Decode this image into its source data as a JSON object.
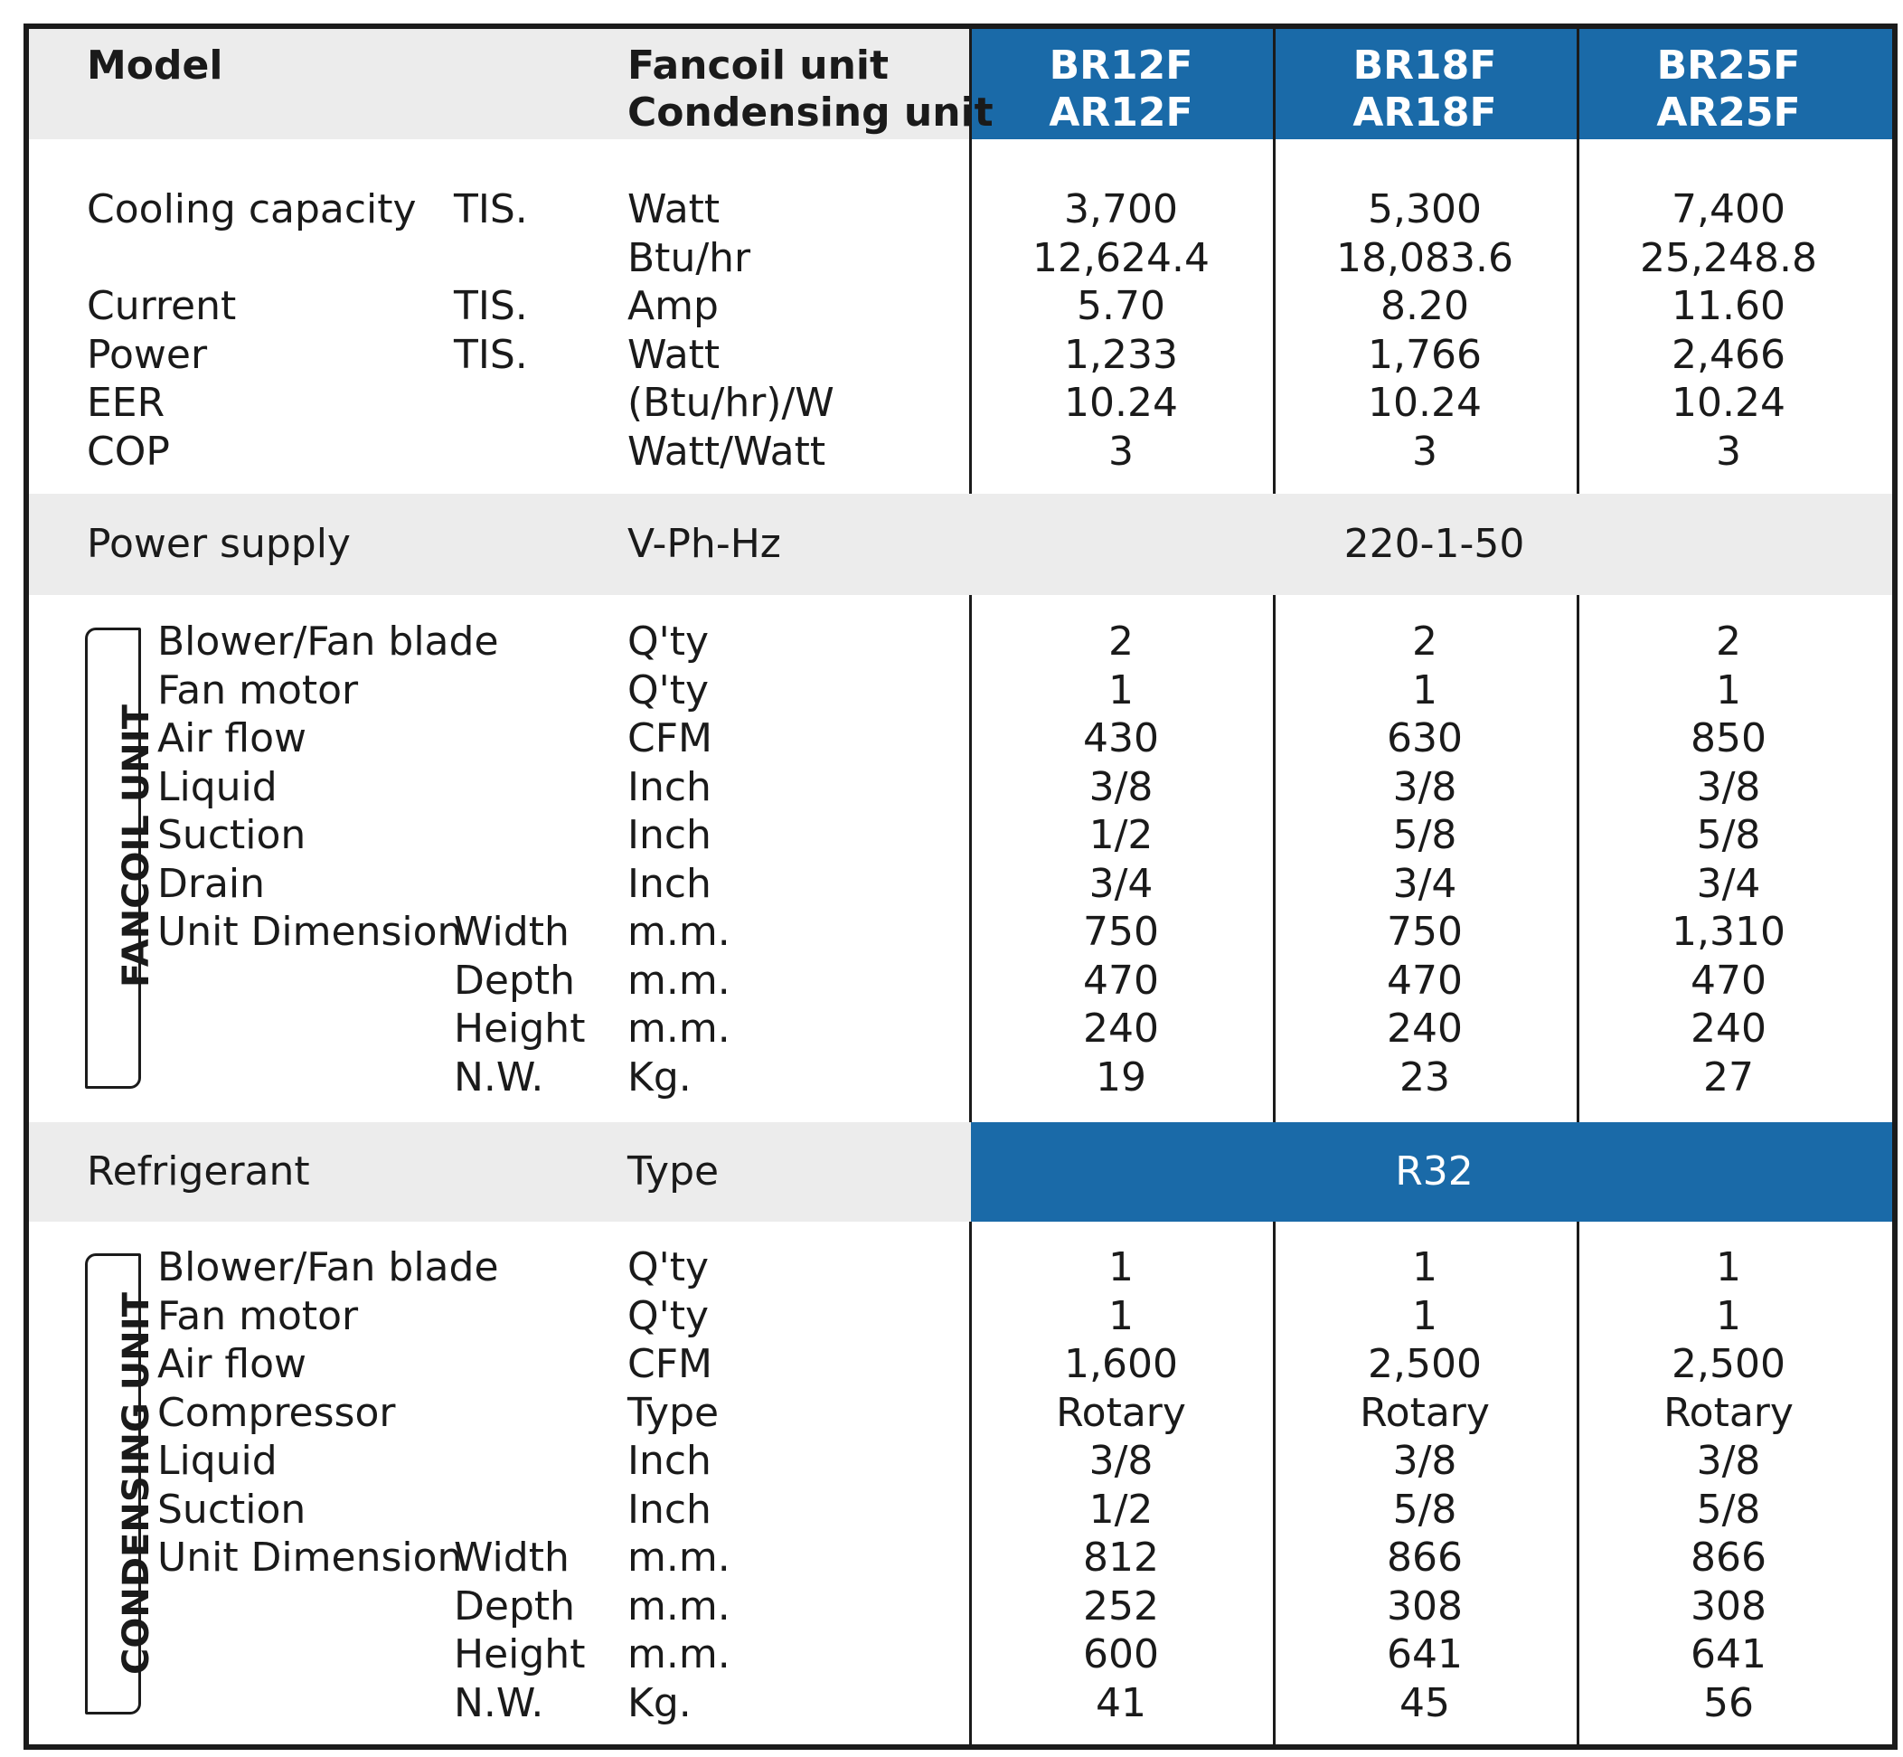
{
  "header": {
    "model_label": "Model",
    "unit_label_1": "Fancoil unit",
    "unit_label_2": "Condensing unit",
    "models": [
      {
        "fancoil": "BR12F",
        "condensing": "AR12F"
      },
      {
        "fancoil": "BR18F",
        "condensing": "AR18F"
      },
      {
        "fancoil": "BR25F",
        "condensing": "AR25F"
      }
    ]
  },
  "performance": {
    "rows": [
      {
        "label": "Cooling capacity",
        "std": "TIS.",
        "unit": "Watt",
        "values": [
          "3,700",
          "5,300",
          "7,400"
        ]
      },
      {
        "label": "",
        "std": "",
        "unit": "Btu/hr",
        "values": [
          "12,624.4",
          "18,083.6",
          "25,248.8"
        ]
      },
      {
        "label": "Current",
        "std": "TIS.",
        "unit": "Amp",
        "values": [
          "5.70",
          "8.20",
          "11.60"
        ]
      },
      {
        "label": "Power",
        "std": "TIS.",
        "unit": "Watt",
        "values": [
          "1,233",
          "1,766",
          "2,466"
        ]
      },
      {
        "label": "EER",
        "std": "",
        "unit": "(Btu/hr)/W",
        "values": [
          "10.24",
          "10.24",
          "10.24"
        ]
      },
      {
        "label": "COP",
        "std": "",
        "unit": "Watt/Watt",
        "values": [
          "3",
          "3",
          "3"
        ]
      }
    ]
  },
  "power_supply": {
    "label": "Power supply",
    "unit": "V-Ph-Hz",
    "value": "220-1-50"
  },
  "fancoil": {
    "section_label": "FANCOIL UNIT",
    "rows": [
      {
        "label": "Blower/Fan blade",
        "sub": "",
        "unit": "Q'ty",
        "values": [
          "2",
          "2",
          "2"
        ]
      },
      {
        "label": "Fan motor",
        "sub": "",
        "unit": "Q'ty",
        "values": [
          "1",
          "1",
          "1"
        ]
      },
      {
        "label": "Air flow",
        "sub": "",
        "unit": "CFM",
        "values": [
          "430",
          "630",
          "850"
        ]
      },
      {
        "label": "Liquid",
        "sub": "",
        "unit": "Inch",
        "values": [
          "3/8",
          "3/8",
          "3/8"
        ]
      },
      {
        "label": "Suction",
        "sub": "",
        "unit": "Inch",
        "values": [
          "1/2",
          "5/8",
          "5/8"
        ]
      },
      {
        "label": "Drain",
        "sub": "",
        "unit": "Inch",
        "values": [
          "3/4",
          "3/4",
          "3/4"
        ]
      },
      {
        "label": "Unit Dimension",
        "sub": "Width",
        "unit": "m.m.",
        "values": [
          "750",
          "750",
          "1,310"
        ]
      },
      {
        "label": "",
        "sub": "Depth",
        "unit": "m.m.",
        "values": [
          "470",
          "470",
          "470"
        ]
      },
      {
        "label": "",
        "sub": "Height",
        "unit": "m.m.",
        "values": [
          "240",
          "240",
          "240"
        ]
      },
      {
        "label": "",
        "sub": "N.W.",
        "unit": "Kg.",
        "values": [
          "19",
          "23",
          "27"
        ]
      }
    ]
  },
  "refrigerant": {
    "label": "Refrigerant",
    "unit": "Type",
    "value": "R32"
  },
  "condensing": {
    "section_label": "CONDENSING UNIT",
    "rows": [
      {
        "label": "Blower/Fan blade",
        "sub": "",
        "unit": "Q'ty",
        "values": [
          "1",
          "1",
          "1"
        ]
      },
      {
        "label": "Fan motor",
        "sub": "",
        "unit": "Q'ty",
        "values": [
          "1",
          "1",
          "1"
        ]
      },
      {
        "label": "Air flow",
        "sub": "",
        "unit": "CFM",
        "values": [
          "1,600",
          "2,500",
          "2,500"
        ]
      },
      {
        "label": "Compressor",
        "sub": "",
        "unit": "Type",
        "values": [
          "Rotary",
          "Rotary",
          "Rotary"
        ]
      },
      {
        "label": "Liquid",
        "sub": "",
        "unit": "Inch",
        "values": [
          "3/8",
          "3/8",
          "3/8"
        ]
      },
      {
        "label": "Suction",
        "sub": "",
        "unit": "Inch",
        "values": [
          "1/2",
          "5/8",
          "5/8"
        ]
      },
      {
        "label": "Unit Dimension",
        "sub": "Width",
        "unit": "m.m.",
        "values": [
          "812",
          "866",
          "866"
        ]
      },
      {
        "label": "",
        "sub": "Depth",
        "unit": "m.m.",
        "values": [
          "252",
          "308",
          "308"
        ]
      },
      {
        "label": "",
        "sub": "Height",
        "unit": "m.m.",
        "values": [
          "600",
          "641",
          "641"
        ]
      },
      {
        "label": "",
        "sub": "N.W.",
        "unit": "Kg.",
        "values": [
          "41",
          "45",
          "56"
        ]
      }
    ]
  },
  "colors": {
    "accent_blue": "#1a6aa8",
    "band_grey": "#ececec",
    "border": "#1b1b1b"
  }
}
